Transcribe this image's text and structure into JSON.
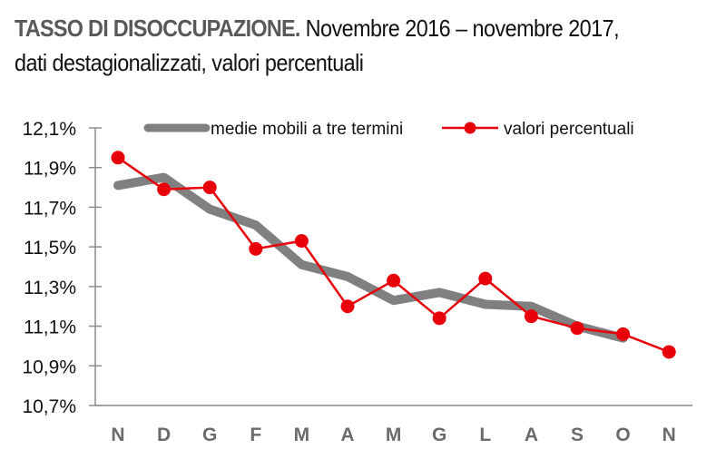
{
  "header": {
    "title_strong": "TASSO DI DISOCCUPAZIONE.",
    "title_rest": " Novembre 2016 – novembre 2017,",
    "subtitle": "dati destagionalizzati, valori percentuali"
  },
  "colors": {
    "moving_average": "#808080",
    "values": "#e8000b",
    "axis": "#8c8c8c",
    "title_strong": "#595959",
    "x_labels": "#6b6b6b"
  },
  "chart_data": {
    "type": "line",
    "title": "TASSO DI DISOCCUPAZIONE. Novembre 2016 – novembre 2017, dati destagionalizzati, valori percentuali",
    "xlabel": "",
    "ylabel": "",
    "categories": [
      "N",
      "D",
      "G",
      "F",
      "M",
      "A",
      "M",
      "G",
      "L",
      "A",
      "S",
      "O",
      "N"
    ],
    "yticks": [
      "12,1%",
      "11,9%",
      "11,7%",
      "11,5%",
      "11,3%",
      "11,1%",
      "10,9%",
      "10,7%"
    ],
    "ylim": [
      10.7,
      12.1
    ],
    "grid": false,
    "legend_position": "top",
    "series": [
      {
        "name": "medie mobili a tre termini",
        "style": "thick-gray-line",
        "values": [
          11.81,
          11.85,
          11.69,
          11.61,
          11.41,
          11.35,
          11.23,
          11.27,
          11.21,
          11.2,
          11.1,
          11.04,
          null
        ]
      },
      {
        "name": "valori percentuali",
        "style": "red-line-markers",
        "values": [
          11.95,
          11.79,
          11.8,
          11.49,
          11.53,
          11.2,
          11.33,
          11.14,
          11.34,
          11.15,
          11.09,
          11.06,
          10.97
        ]
      }
    ]
  }
}
